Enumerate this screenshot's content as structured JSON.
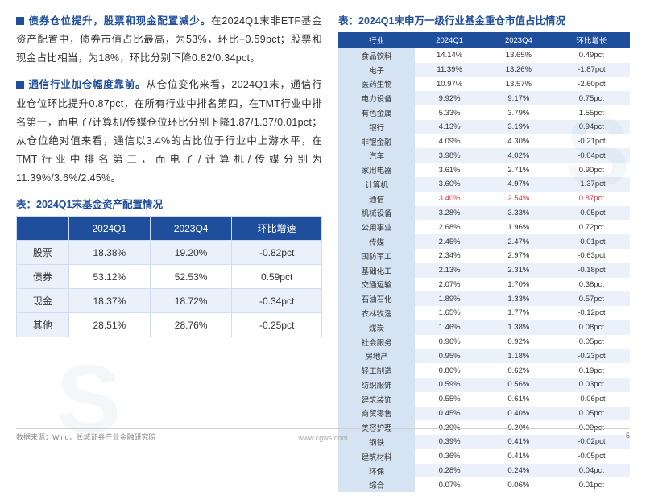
{
  "left": {
    "bullets": [
      {
        "lead": "债券仓位提升，股票和现金配置减少。",
        "body": "在2024Q1末非ETF基金资产配置中，债券市值占比最高，为53%，环比+0.59pct；股票和现金占比相当，为18%，环比分别下降0.82/0.34pct。"
      },
      {
        "lead": "通信行业加仓幅度靠前。",
        "body": "从仓位变化来看，2024Q1末，通信行业仓位环比提升0.87pct，在所有行业中排名第四，在TMT行业中排名第一，而电子/计算机/传媒仓位环比分别下降1.87/1.37/0.01pct；从仓位绝对值来看，通信以3.4%的占比位于行业中上游水平，在TMT行业中排名第三，而电子/计算机/传媒分别为11.39%/3.6%/2.45%。"
      }
    ],
    "table_title": "表：2024Q1末基金资产配置情况",
    "columns": [
      "",
      "2024Q1",
      "2023Q4",
      "环比增速"
    ],
    "rows": [
      [
        "股票",
        "18.38%",
        "19.20%",
        "-0.82pct"
      ],
      [
        "债券",
        "53.12%",
        "52.53%",
        "0.59pct"
      ],
      [
        "现金",
        "18.37%",
        "18.72%",
        "-0.34pct"
      ],
      [
        "其他",
        "28.51%",
        "28.76%",
        "-0.25pct"
      ]
    ]
  },
  "right": {
    "table_title": "表：2024Q1末申万一级行业基金重仓市值占比情况",
    "columns": [
      "行业",
      "2024Q1",
      "2023Q4",
      "环比增长"
    ],
    "rows": [
      {
        "c": [
          "食品饮料",
          "14.14%",
          "13.65%",
          "0.49pct"
        ],
        "hl": false
      },
      {
        "c": [
          "电子",
          "11.39%",
          "13.26%",
          "-1.87pct"
        ],
        "hl": false
      },
      {
        "c": [
          "医药生物",
          "10.97%",
          "13.57%",
          "-2.60pct"
        ],
        "hl": false
      },
      {
        "c": [
          "电力设备",
          "9.92%",
          "9.17%",
          "0.75pct"
        ],
        "hl": false
      },
      {
        "c": [
          "有色金属",
          "5.33%",
          "3.79%",
          "1.55pct"
        ],
        "hl": false
      },
      {
        "c": [
          "银行",
          "4.13%",
          "3.19%",
          "0.94pct"
        ],
        "hl": false
      },
      {
        "c": [
          "非银金融",
          "4.09%",
          "4.30%",
          "-0.21pct"
        ],
        "hl": false
      },
      {
        "c": [
          "汽车",
          "3.98%",
          "4.02%",
          "-0.04pct"
        ],
        "hl": false
      },
      {
        "c": [
          "家用电器",
          "3.61%",
          "2.71%",
          "0.90pct"
        ],
        "hl": false
      },
      {
        "c": [
          "计算机",
          "3.60%",
          "4.97%",
          "-1.37pct"
        ],
        "hl": false
      },
      {
        "c": [
          "通信",
          "3.40%",
          "2.54%",
          "0.87pct"
        ],
        "hl": true
      },
      {
        "c": [
          "机械设备",
          "3.28%",
          "3.33%",
          "-0.05pct"
        ],
        "hl": false
      },
      {
        "c": [
          "公用事业",
          "2.68%",
          "1.96%",
          "0.72pct"
        ],
        "hl": false
      },
      {
        "c": [
          "传媒",
          "2.45%",
          "2.47%",
          "-0.01pct"
        ],
        "hl": false
      },
      {
        "c": [
          "国防军工",
          "2.34%",
          "2.97%",
          "-0.63pct"
        ],
        "hl": false
      },
      {
        "c": [
          "基础化工",
          "2.13%",
          "2.31%",
          "-0.18pct"
        ],
        "hl": false
      },
      {
        "c": [
          "交通运输",
          "2.07%",
          "1.70%",
          "0.38pct"
        ],
        "hl": false
      },
      {
        "c": [
          "石油石化",
          "1.89%",
          "1.33%",
          "0.57pct"
        ],
        "hl": false
      },
      {
        "c": [
          "农林牧渔",
          "1.65%",
          "1.77%",
          "-0.12pct"
        ],
        "hl": false
      },
      {
        "c": [
          "煤炭",
          "1.46%",
          "1.38%",
          "0.08pct"
        ],
        "hl": false
      },
      {
        "c": [
          "社会服务",
          "0.96%",
          "0.92%",
          "0.05pct"
        ],
        "hl": false
      },
      {
        "c": [
          "房地产",
          "0.95%",
          "1.18%",
          "-0.23pct"
        ],
        "hl": false
      },
      {
        "c": [
          "轻工制造",
          "0.80%",
          "0.62%",
          "0.19pct"
        ],
        "hl": false
      },
      {
        "c": [
          "纺织服饰",
          "0.59%",
          "0.56%",
          "0.03pct"
        ],
        "hl": false
      },
      {
        "c": [
          "建筑装饰",
          "0.55%",
          "0.61%",
          "-0.06pct"
        ],
        "hl": false
      },
      {
        "c": [
          "商贸零售",
          "0.45%",
          "0.40%",
          "0.05pct"
        ],
        "hl": false
      },
      {
        "c": [
          "美容护理",
          "0.39%",
          "0.30%",
          "0.09pct"
        ],
        "hl": false
      },
      {
        "c": [
          "钢铁",
          "0.39%",
          "0.41%",
          "-0.02pct"
        ],
        "hl": false
      },
      {
        "c": [
          "建筑材料",
          "0.36%",
          "0.41%",
          "-0.05pct"
        ],
        "hl": false
      },
      {
        "c": [
          "环保",
          "0.28%",
          "0.24%",
          "0.04pct"
        ],
        "hl": false
      },
      {
        "c": [
          "综合",
          "0.07%",
          "0.06%",
          "0.01pct"
        ],
        "hl": false
      }
    ]
  },
  "footer": {
    "source": "数据来源：Wind，长城证券产业金融研究院",
    "url": "www.cgws.com",
    "page": "5"
  }
}
